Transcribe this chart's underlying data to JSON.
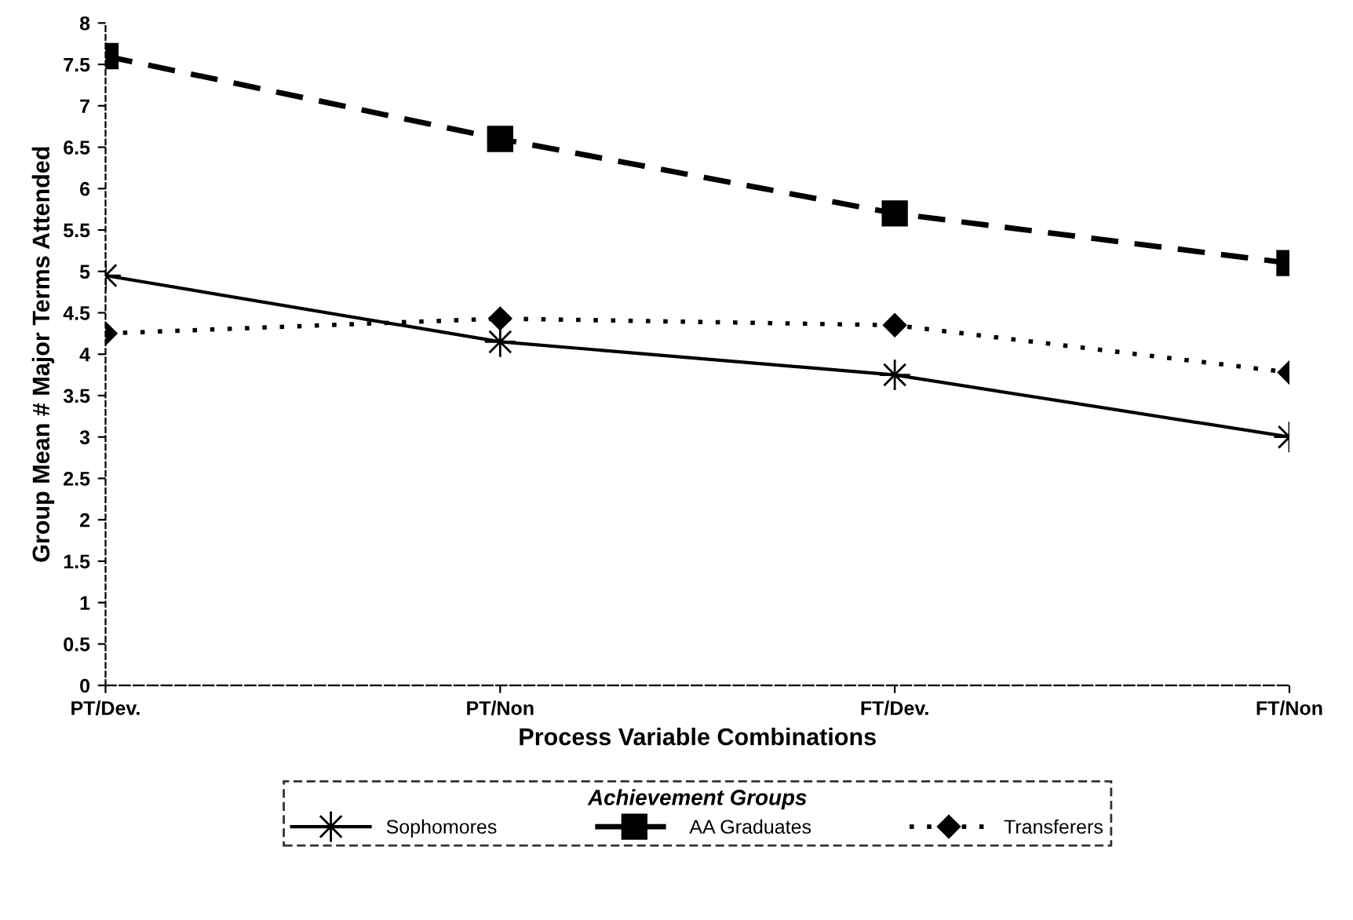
{
  "chart_data": {
    "type": "line",
    "xlabel": "Process Variable Combinations",
    "ylabel": "Group Mean # Major Terms Attended",
    "categories": [
      "PT/Dev.",
      "PT/Non",
      "FT/Dev.",
      "FT/Non"
    ],
    "series": [
      {
        "name": "Sophomores",
        "color": "#000000",
        "values": [
          4.95,
          4.15,
          3.75,
          3.0
        ],
        "marker": "star",
        "line_style": "solid"
      },
      {
        "name": "AA Graduates",
        "color": "#000000",
        "values": [
          7.6,
          6.6,
          5.7,
          5.1
        ],
        "marker": "square",
        "line_style": "dashed"
      },
      {
        "name": "Transferers",
        "color": "#000000",
        "values": [
          4.25,
          4.43,
          4.35,
          3.78
        ],
        "marker": "diamond",
        "line_style": "dotted"
      }
    ],
    "ylim": [
      0,
      8
    ],
    "yticks": [
      0,
      0.5,
      1,
      1.5,
      2,
      2.5,
      3,
      3.5,
      4,
      4.5,
      5,
      5.5,
      6,
      6.5,
      7,
      7.5,
      8
    ],
    "grid": false,
    "legend": "bottom",
    "legend_title": "Achievement Groups"
  }
}
